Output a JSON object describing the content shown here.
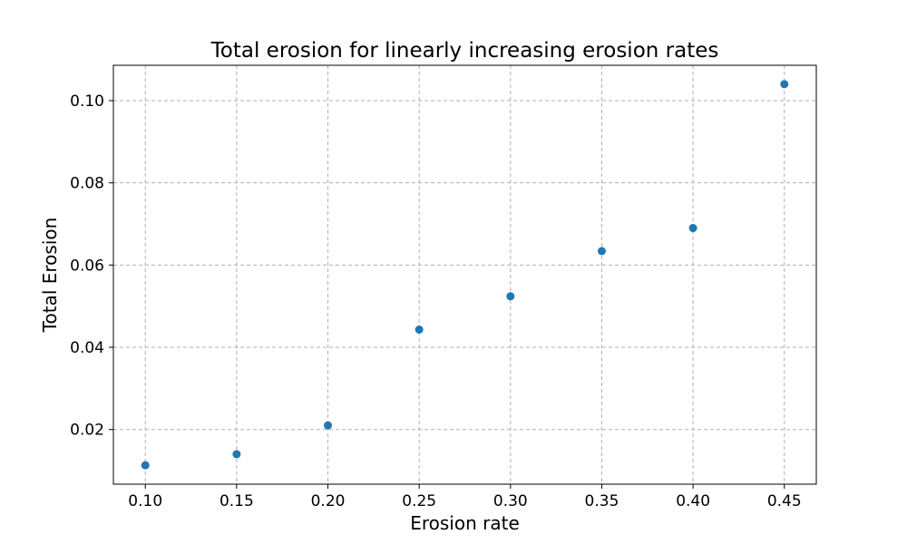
{
  "chart_data": {
    "type": "scatter",
    "title": "Total erosion for linearly increasing erosion rates",
    "xlabel": "Erosion rate",
    "ylabel": "Total Erosion",
    "x": [
      0.1,
      0.15,
      0.2,
      0.25,
      0.3,
      0.35,
      0.4,
      0.45
    ],
    "y": [
      0.0113,
      0.014,
      0.021,
      0.0443,
      0.0524,
      0.0634,
      0.069,
      0.104
    ],
    "xlim": [
      0.0825,
      0.4675
    ],
    "ylim": [
      0.0067,
      0.1086
    ],
    "xticks": [
      "0.10",
      "0.15",
      "0.20",
      "0.25",
      "0.30",
      "0.35",
      "0.40",
      "0.45"
    ],
    "yticks": [
      "0.02",
      "0.04",
      "0.06",
      "0.08",
      "0.10"
    ],
    "grid": true,
    "marker_color": "#1f77b4"
  }
}
